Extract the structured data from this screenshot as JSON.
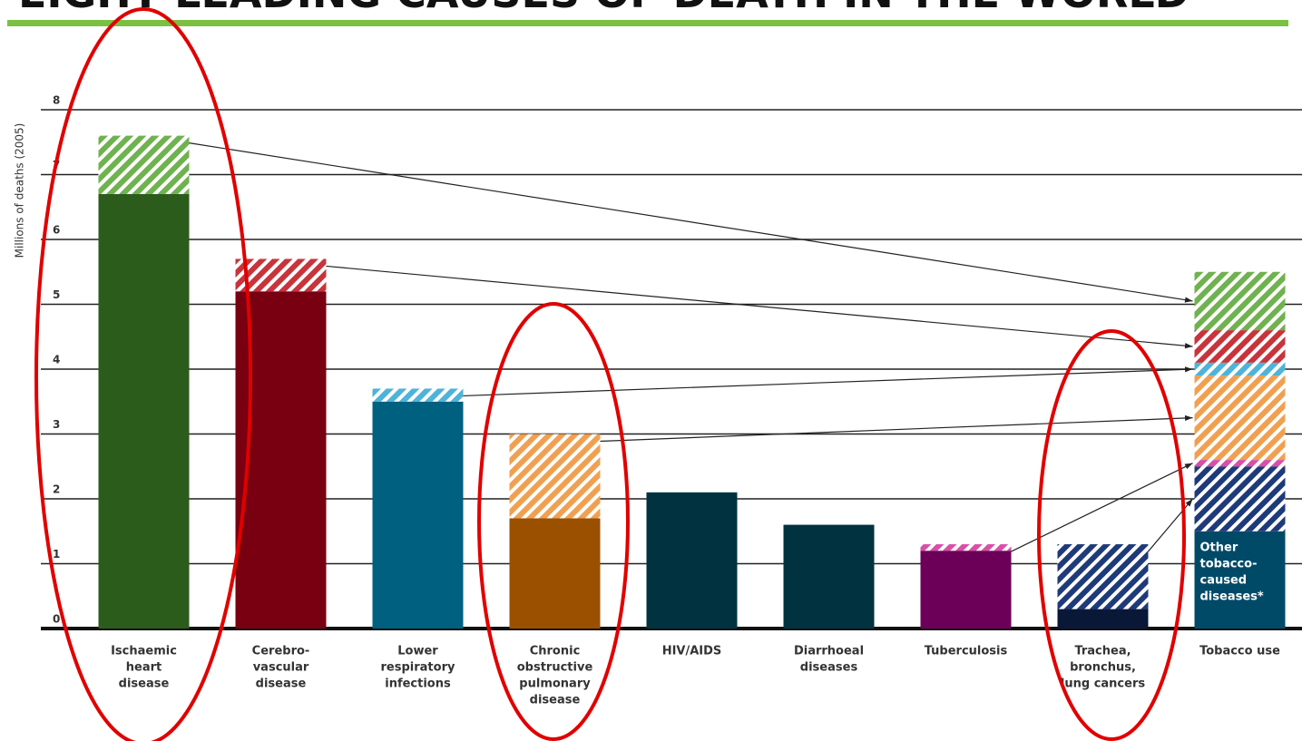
{
  "chart_data": {
    "type": "bar",
    "title": "EIGHT LEADING CAUSES OF DEATH IN THE WORLD",
    "y_label": "Millions of deaths (2005)",
    "categories": [
      [
        "Ischaemic",
        "heart",
        "disease"
      ],
      [
        "Cerebro-",
        "vascular",
        "disease"
      ],
      [
        "Lower",
        "respiratory",
        "infections"
      ],
      [
        "Chronic",
        "obstructive",
        "pulmonary",
        "disease"
      ],
      [
        "HIV/AIDS"
      ],
      [
        "Diarrhoeal",
        "diseases"
      ],
      [
        "Tuberculosis"
      ],
      [
        "Trachea,",
        "bronchus,",
        "lung cancers"
      ],
      [
        "Tobacco use"
      ]
    ],
    "series": [
      {
        "colors": [
          "#2b5c1c",
          "#780010",
          "#00607f",
          "#9b5000",
          "#00323f",
          "#00323f",
          "#6c0058",
          "#0a1838",
          null
        ],
        "values": [
          6.7,
          5.2,
          3.5,
          1.7,
          2.1,
          1.6,
          1.2,
          0.3,
          null
        ]
      },
      {
        "hatched": true,
        "colors": [
          "#6fb24f",
          "#c8343c",
          "#4fb3d9",
          "#f0a050",
          null,
          null,
          "#d94fa8",
          "#1e3a7a",
          null
        ],
        "values": [
          0.9,
          0.5,
          0.2,
          1.3,
          null,
          null,
          0.1,
          1.0,
          null
        ]
      }
    ],
    "stack_category": 8,
    "stack": {
      "colors": [
        "#004a68",
        "#1e3a7a",
        "#d94fa8",
        "#f0a050",
        "#4fb3d9",
        "#c8343c",
        "#6fb24f"
      ],
      "hatched": [
        false,
        true,
        true,
        true,
        true,
        true,
        true
      ],
      "values": [
        1.5,
        1.0,
        0.1,
        1.3,
        0.2,
        0.5,
        0.9
      ],
      "segment_label": [
        "Other",
        "tobacco-",
        "caused",
        "diseases*"
      ]
    },
    "ylim": [
      0,
      8
    ],
    "yticks": [
      0,
      1,
      2,
      3,
      4,
      5,
      6,
      7,
      8
    ],
    "grid": true
  }
}
